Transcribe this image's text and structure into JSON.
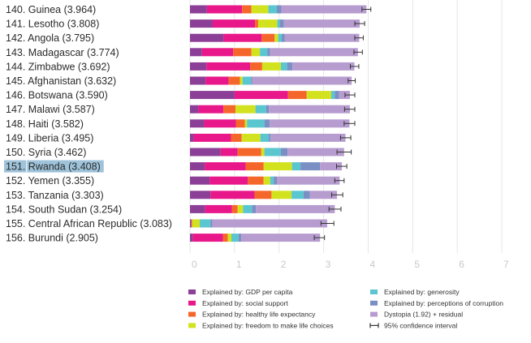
{
  "chart_data": {
    "type": "bar",
    "stacked": true,
    "orientation": "horizontal",
    "categories": [
      "140. Guinea (3.964)",
      "141. Lesotho (3.808)",
      "142. Angola (3.795)",
      "143. Madagascar (3.774)",
      "144. Zimbabwe (3.692)",
      "145. Afghanistan (3.632)",
      "146. Botswana (3.590)",
      "147. Malawi (3.587)",
      "148. Haiti (3.582)",
      "149. Liberia (3.495)",
      "150. Syria (3.462)",
      "151. Rwanda (3.408)",
      "152. Yemen (3.355)",
      "153. Tanzania (3.303)",
      "154. South Sudan (3.254)",
      "155. Central African Republic (3.083)",
      "156. Burundi (2.905)"
    ],
    "highlighted_category": "151. Rwanda (3.408)",
    "series": [
      {
        "name": "Explained by: GDP per capita",
        "color": "#8b3f96",
        "values": [
          0.38,
          0.51,
          0.75,
          0.27,
          0.37,
          0.35,
          1.0,
          0.19,
          0.32,
          0.08,
          0.69,
          0.33,
          0.44,
          0.46,
          0.34,
          0.03,
          0.06
        ]
      },
      {
        "name": "Explained by: social support",
        "color": "#e8178a",
        "values": [
          0.79,
          0.95,
          0.86,
          0.7,
          0.98,
          0.52,
          1.2,
          0.56,
          0.71,
          0.84,
          0.38,
          0.92,
          0.86,
          0.99,
          0.6,
          0.0,
          0.68
        ]
      },
      {
        "name": "Explained by: healthy life expectancy",
        "color": "#f5662a",
        "values": [
          0.21,
          0.07,
          0.29,
          0.41,
          0.27,
          0.25,
          0.42,
          0.27,
          0.2,
          0.24,
          0.53,
          0.4,
          0.35,
          0.38,
          0.13,
          0.02,
          0.11
        ]
      },
      {
        "name": "Explained by: freedom to make life choices",
        "color": "#d3e21f",
        "values": [
          0.38,
          0.43,
          0.08,
          0.19,
          0.42,
          0.06,
          0.55,
          0.45,
          0.05,
          0.42,
          0.07,
          0.64,
          0.15,
          0.45,
          0.12,
          0.17,
          0.08
        ]
      },
      {
        "name": "Explained by: generosity",
        "color": "#59c6d0",
        "values": [
          0.19,
          0.05,
          0.08,
          0.17,
          0.14,
          0.19,
          0.08,
          0.24,
          0.39,
          0.19,
          0.37,
          0.19,
          0.08,
          0.27,
          0.2,
          0.24,
          0.16
        ]
      },
      {
        "name": "Explained by: perceptions of corruption",
        "color": "#7a8fc4",
        "values": [
          0.1,
          0.1,
          0.07,
          0.06,
          0.12,
          0.03,
          0.1,
          0.06,
          0.12,
          0.04,
          0.15,
          0.44,
          0.07,
          0.14,
          0.09,
          0.04,
          0.06
        ]
      },
      {
        "name": "Dystopia (1.92) + residual",
        "color": "#b79cd0",
        "values": [
          1.91,
          1.7,
          1.67,
          1.97,
          1.39,
          2.23,
          0.24,
          1.82,
          1.79,
          1.68,
          1.27,
          0.49,
          1.41,
          0.61,
          1.77,
          2.58,
          1.77
        ]
      }
    ],
    "ci_low": [
      3.86,
      3.7,
      3.7,
      3.68,
      3.6,
      3.55,
      3.48,
      3.47,
      3.46,
      3.38,
      3.3,
      3.29,
      3.25,
      3.18,
      3.12,
      2.94,
      2.79
    ],
    "ci_high": [
      4.06,
      3.92,
      3.89,
      3.87,
      3.79,
      3.71,
      3.7,
      3.7,
      3.7,
      3.61,
      3.62,
      3.52,
      3.46,
      3.43,
      3.39,
      3.23,
      3.02
    ],
    "xlim": [
      0,
      7.4
    ],
    "xticks": [
      0,
      1,
      2,
      3,
      4,
      5,
      6,
      7
    ],
    "grid": true,
    "legend_placement": "bottom",
    "legend_extra": "95% confidence interval",
    "highlight_color": "#9ec3da"
  }
}
